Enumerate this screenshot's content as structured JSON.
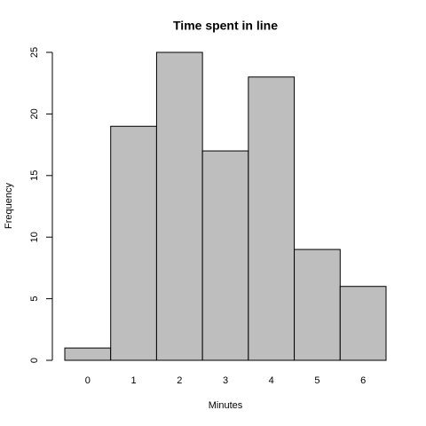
{
  "chart_data": {
    "type": "bar",
    "title": "Time spent in line",
    "x_label": "Minutes",
    "y_label": "Frequency",
    "categories": [
      "0",
      "1",
      "2",
      "3",
      "4",
      "5",
      "6"
    ],
    "values": [
      1,
      19,
      25,
      17,
      23,
      9,
      6
    ],
    "color": "#bebebe",
    "ylim": [
      0,
      25
    ],
    "yticks": [
      0,
      5,
      10,
      15,
      20,
      25
    ],
    "grid": false
  }
}
